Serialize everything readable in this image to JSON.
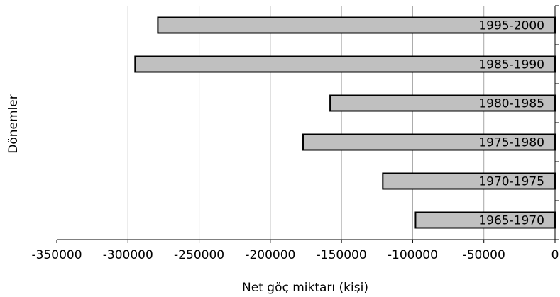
{
  "chart_data": {
    "type": "bar",
    "orientation": "horizontal",
    "categories": [
      "1995-2000",
      "1985-1990",
      "1980-1985",
      "1975-1980",
      "1970-1975",
      "1965-1970"
    ],
    "values": [
      -279000,
      -295000,
      -158000,
      -177000,
      -121000,
      -98000
    ],
    "xlabel": "Net göç miktarı (kişi)",
    "ylabel": "Dönemler",
    "xlim": [
      -350000,
      0
    ],
    "x_ticks": [
      -350000,
      -300000,
      -250000,
      -200000,
      -150000,
      -100000,
      -50000,
      0
    ],
    "x_tick_labels": [
      "-350000",
      "-300000",
      "-250000",
      "-200000",
      "-150000",
      "-100000",
      "-50000",
      "0"
    ],
    "grid": "vertical",
    "legend": "none",
    "colors": {
      "bar_fill": "#c0c0c0",
      "bar_stroke": "#000000",
      "grid": "#a6a6a6"
    }
  }
}
